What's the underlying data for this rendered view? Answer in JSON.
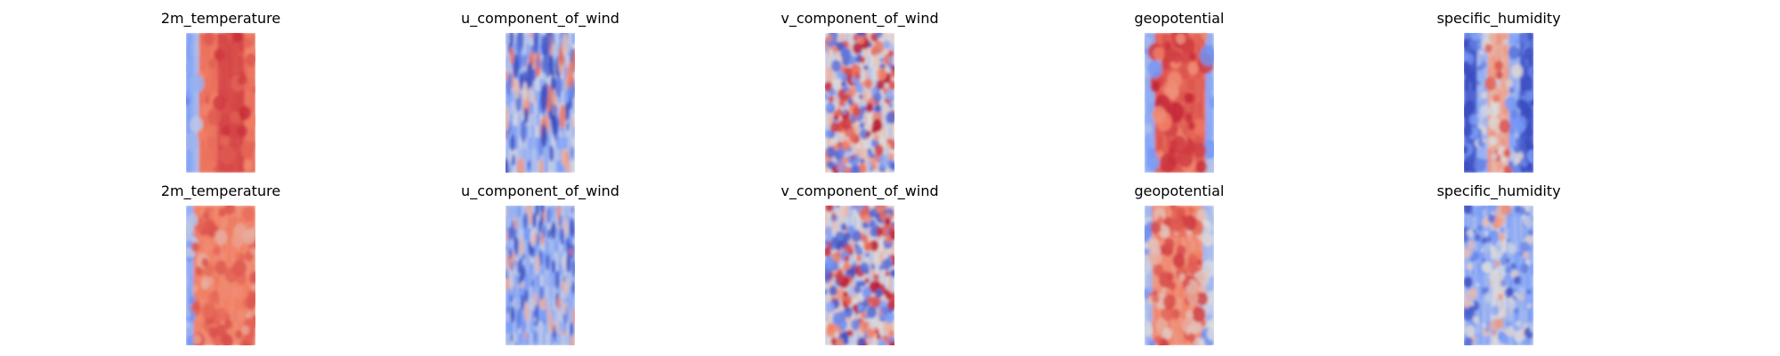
{
  "figure": {
    "colormap": "coolwarm",
    "colors": {
      "cold": "#3b4cc0",
      "neutral": "#dddddd",
      "warm": "#b40426",
      "background": "#ffffff"
    }
  },
  "chart_data": [
    {
      "type": "heatmap",
      "title": "2m_temperature",
      "row": 1,
      "column": 1,
      "colormap": "coolwarm",
      "pattern": "cold left edge strip, warm (red) body with darker red core toward right",
      "grid": false
    },
    {
      "type": "heatmap",
      "title": "u_component_of_wind",
      "row": 1,
      "column": 2,
      "colormap": "coolwarm",
      "pattern": "mostly pale blue with scattered red streaks on the left and a blue patch right-center",
      "grid": false
    },
    {
      "type": "heatmap",
      "title": "v_component_of_wind",
      "row": 1,
      "column": 3,
      "colormap": "coolwarm",
      "pattern": "noisy alternating small red and blue blobs on a light background",
      "grid": false
    },
    {
      "type": "heatmap",
      "title": "geopotential",
      "row": 1,
      "column": 4,
      "colormap": "coolwarm",
      "pattern": "blue at left and right edges, red central band with dark red patches",
      "grid": false
    },
    {
      "type": "heatmap",
      "title": "specific_humidity",
      "row": 1,
      "column": 5,
      "colormap": "coolwarm",
      "pattern": "dark blue on both sides, light blue interior, orange-red band through the center",
      "grid": false
    },
    {
      "type": "heatmap",
      "title": "2m_temperature",
      "row": 2,
      "column": 1,
      "colormap": "coolwarm",
      "pattern": "blue left edge, mottled salmon-red body",
      "grid": false
    },
    {
      "type": "heatmap",
      "title": "u_component_of_wind",
      "row": 2,
      "column": 2,
      "colormap": "coolwarm",
      "pattern": "light blue with scattered thin red streaks",
      "grid": false
    },
    {
      "type": "heatmap",
      "title": "v_component_of_wind",
      "row": 2,
      "column": 3,
      "colormap": "coolwarm",
      "pattern": "noisy mixed red and blue swirls",
      "grid": false
    },
    {
      "type": "heatmap",
      "title": "geopotential",
      "row": 2,
      "column": 4,
      "colormap": "coolwarm",
      "pattern": "blue edges, mottled red center",
      "grid": false
    },
    {
      "type": "heatmap",
      "title": "specific_humidity",
      "row": 2,
      "column": 5,
      "colormap": "coolwarm",
      "pattern": "blue background with a red streak along the center",
      "grid": false
    }
  ]
}
